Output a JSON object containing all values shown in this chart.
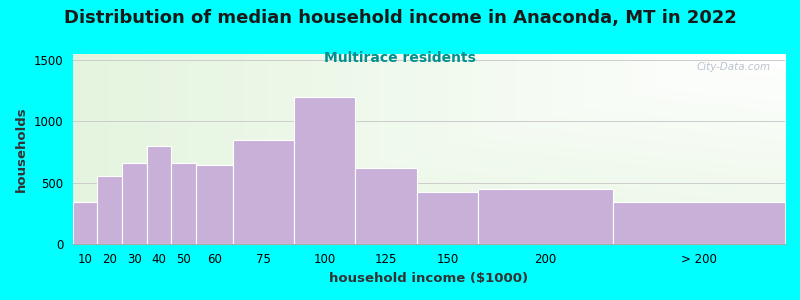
{
  "title": "Distribution of median household income in Anaconda, MT in 2022",
  "subtitle": "Multirace residents",
  "xlabel": "household income ($1000)",
  "ylabel": "households",
  "background_color": "#00FFFF",
  "bar_color": "#c8b0d8",
  "categories": [
    "10",
    "20",
    "30",
    "40",
    "50",
    "60",
    "75",
    "100",
    "125",
    "150",
    "200",
    "> 200"
  ],
  "values": [
    340,
    550,
    660,
    800,
    660,
    645,
    850,
    1200,
    620,
    420,
    450,
    340
  ],
  "bar_lefts": [
    10,
    20,
    30,
    40,
    50,
    60,
    75,
    100,
    125,
    150,
    175,
    230
  ],
  "bar_widths": [
    10,
    10,
    10,
    10,
    10,
    15,
    25,
    25,
    25,
    25,
    55,
    70
  ],
  "xlim": [
    10,
    300
  ],
  "ylim": [
    0,
    1550
  ],
  "yticks": [
    0,
    500,
    1000,
    1500
  ],
  "title_fontsize": 13,
  "subtitle_fontsize": 10,
  "subtitle_color": "#009090",
  "axis_label_fontsize": 9.5,
  "tick_fontsize": 8.5,
  "watermark_text": "City-Data.com",
  "grid_color": "#cccccc"
}
